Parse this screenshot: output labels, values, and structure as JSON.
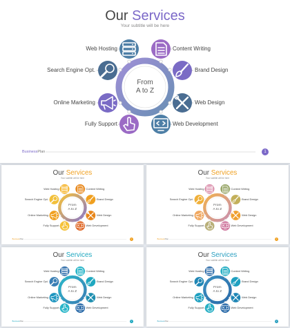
{
  "main": {
    "title_a": "Our",
    "title_b": "Services",
    "subtitle": "Your subtitle will be here",
    "center_line1": "From",
    "center_line2": "A to Z",
    "left_items": [
      "Web Hosting",
      "Search Engine Opt.",
      "Online Marketing",
      "Fully Support"
    ],
    "right_items": [
      "Content Writing",
      "Brand Design",
      "Web Design",
      "Web Development"
    ],
    "footer_a": "Business",
    "footer_b": "Plan",
    "page_number": "1",
    "icons_left": [
      "server-icon",
      "magnifier-icon",
      "megaphone-icon",
      "hand-pointer-icon"
    ],
    "icons_right": [
      "document-icon",
      "paint-brush-icon",
      "tools-icon",
      "monitor-code-icon"
    ]
  },
  "themes": [
    {
      "name": "purple",
      "accent": "#7b68c8",
      "ring": [
        "#9e8fd6",
        "#6a8fb5"
      ],
      "left_colors": [
        "#4e7fa6",
        "#4a6d92",
        "#7a6bc5",
        "#9b6bc5"
      ],
      "right_colors": [
        "#9b6bc5",
        "#7a6bc5",
        "#4a6d92",
        "#4e7fa6"
      ]
    },
    {
      "name": "yellow",
      "accent": "#f0a020",
      "ring": [
        "#f5c23a",
        "#8a77c9"
      ],
      "left_colors": [
        "#f5b020",
        "#f2c03a",
        "#f0a020",
        "#f5c23a"
      ],
      "right_colors": [
        "#e88a20",
        "#f0a020",
        "#e8861a",
        "#e06a2a"
      ]
    },
    {
      "name": "pastel",
      "accent": "#f0a020",
      "ring": [
        "#f0b050",
        "#c98fb0"
      ],
      "left_colors": [
        "#d98aa8",
        "#f0b03a",
        "#f0a860",
        "#b9b07a"
      ],
      "right_colors": [
        "#9aa86b",
        "#c3b05a",
        "#f0a030",
        "#d07aa0"
      ]
    },
    {
      "name": "teal",
      "accent": "#1fa8c0",
      "ring": [
        "#2bb6c9",
        "#3a7fb5"
      ],
      "left_colors": [
        "#2a6aa8",
        "#3a7fb5",
        "#1f96c0",
        "#2bb6c9"
      ],
      "right_colors": [
        "#2bb6c9",
        "#1fa8c0",
        "#1f8fb0",
        "#2a6aa8"
      ]
    },
    {
      "name": "blue",
      "accent": "#2a9fc0",
      "ring": [
        "#3a8fc0",
        "#2a6aa8"
      ],
      "left_colors": [
        "#2a6aa8",
        "#1f86b5",
        "#1fa0c0",
        "#2ab0c5"
      ],
      "right_colors": [
        "#2ab0c5",
        "#1fa0c0",
        "#1f86b5",
        "#2a6aa8"
      ]
    }
  ]
}
